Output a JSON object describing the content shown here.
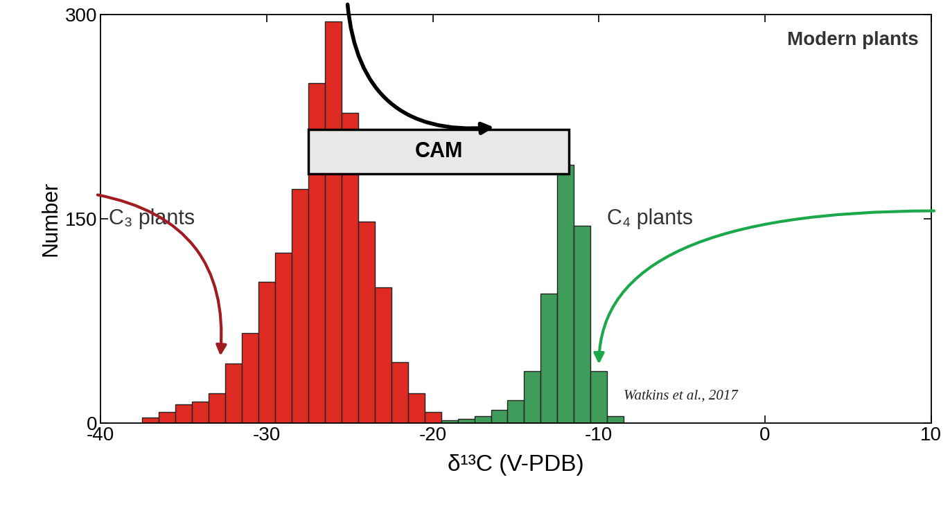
{
  "chart_data": {
    "type": "histogram",
    "title": "Modern plants",
    "x_label": "δ¹³C (V-PDB)",
    "y_label": "Number",
    "xlim": [
      -40,
      10
    ],
    "xticks": [
      -40,
      -30,
      -20,
      -10,
      0,
      10
    ],
    "ylim": [
      0,
      300
    ],
    "yticks": [
      0,
      150,
      300
    ],
    "grid": false,
    "series": [
      {
        "name": "C₃ plants",
        "color": "#e02b24",
        "bins": [
          -37.5,
          -36.5,
          -35.5,
          -34.5,
          -33.5,
          -32.5,
          -31.5,
          -30.5,
          -29.5,
          -28.5,
          -27.5,
          -26.5,
          -25.5,
          -24.5,
          -23.5,
          -22.5,
          -21.5,
          -20.5,
          -19.5
        ],
        "counts": [
          4,
          8,
          14,
          16,
          22,
          44,
          66,
          104,
          125,
          172,
          250,
          295,
          228,
          148,
          100,
          45,
          22,
          8
        ]
      },
      {
        "name": "C₄ plants",
        "color": "#3f9c5a",
        "bins": [
          -19.5,
          -18.5,
          -17.5,
          -16.5,
          -15.5,
          -14.5,
          -13.5,
          -12.5,
          -11.5,
          -10.5,
          -9.5,
          -8.5
        ],
        "counts": [
          2,
          3,
          5,
          10,
          17,
          38,
          95,
          190,
          145,
          38,
          5
        ]
      }
    ],
    "cam": {
      "label": "CAM",
      "range": [
        -27.5,
        -11.8
      ]
    },
    "annotations": [
      "Watkins et al., 2017"
    ]
  }
}
